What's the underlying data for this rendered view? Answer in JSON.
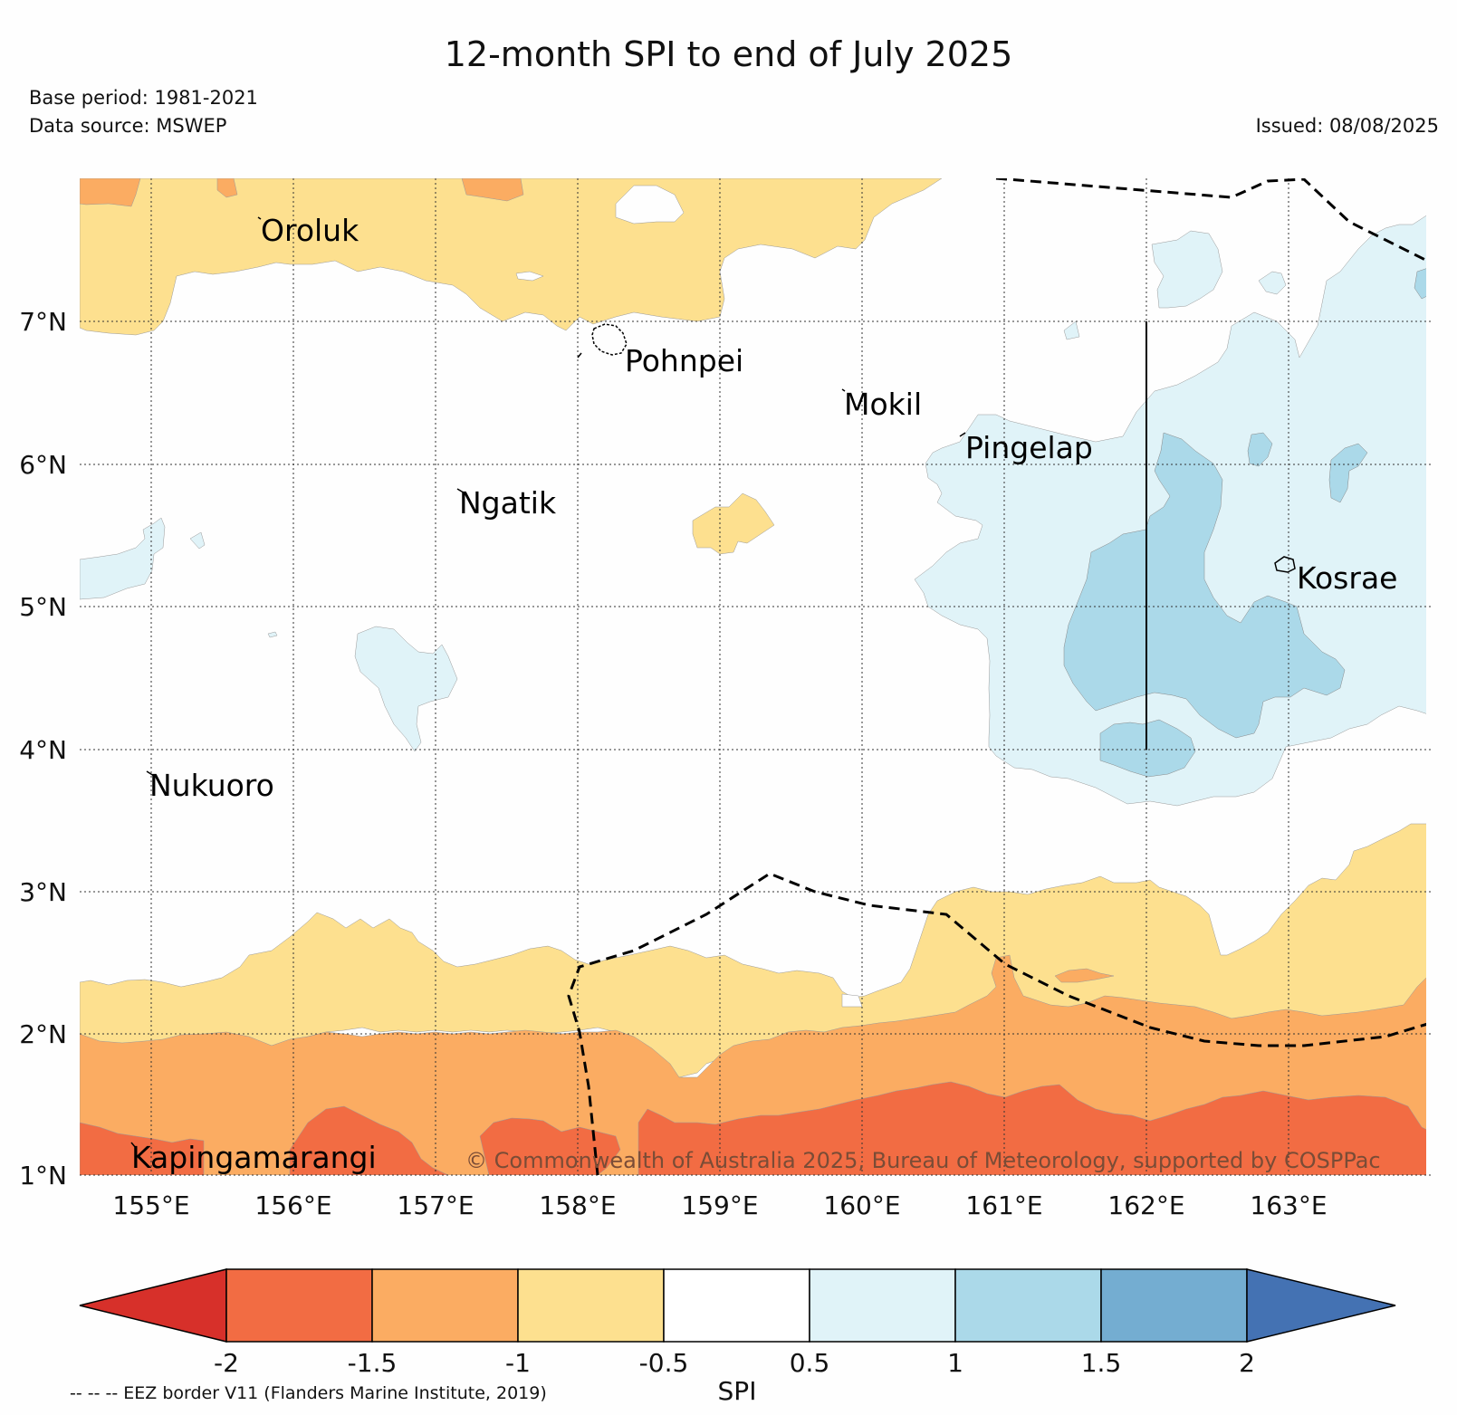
{
  "title": "12-month SPI to end of July 2025",
  "base_period": "Base period: 1981-2021",
  "data_source": "Data source: MSWEP",
  "issued": "Issued: 08/08/2025",
  "copyright": "© Commonwealth of Australia 2025, Bureau of Meteorology, supported by COSPPac",
  "eez_note": "-- -- -- EEZ border V11 (Flanders Marine Institute, 2019)",
  "lat_ticks": [
    "7°N",
    "6°N",
    "5°N",
    "4°N",
    "3°N",
    "2°N",
    "1°N"
  ],
  "lon_ticks": [
    "155°E",
    "156°E",
    "157°E",
    "158°E",
    "159°E",
    "160°E",
    "161°E",
    "162°E",
    "163°E"
  ],
  "places": {
    "oroluk": "Oroluk",
    "pohnpei": "Pohnpei",
    "mokil": "Mokil",
    "pingelap": "Pingelap",
    "ngatik": "Ngatik",
    "kosrae": "Kosrae",
    "nukuoro": "Nukuoro",
    "kapingamarangi": "Kapingamarangi"
  },
  "colorbar": {
    "label": "SPI",
    "ticks": [
      "-2",
      "-1.5",
      "-1",
      "-0.5",
      "0.5",
      "1",
      "1.5",
      "2"
    ],
    "colors": {
      "below_-2": "#d7302a",
      "-2_-1.5": "#f26c43",
      "-1.5_-1": "#fbac62",
      "-1_-0.5": "#fde08f",
      "-0.5_0.5": "#ffffff",
      "0.5_1": "#e0f3f8",
      "1_1.5": "#abd9e9",
      "1.5_2": "#74add1",
      "above_2": "#4472b3"
    }
  }
}
